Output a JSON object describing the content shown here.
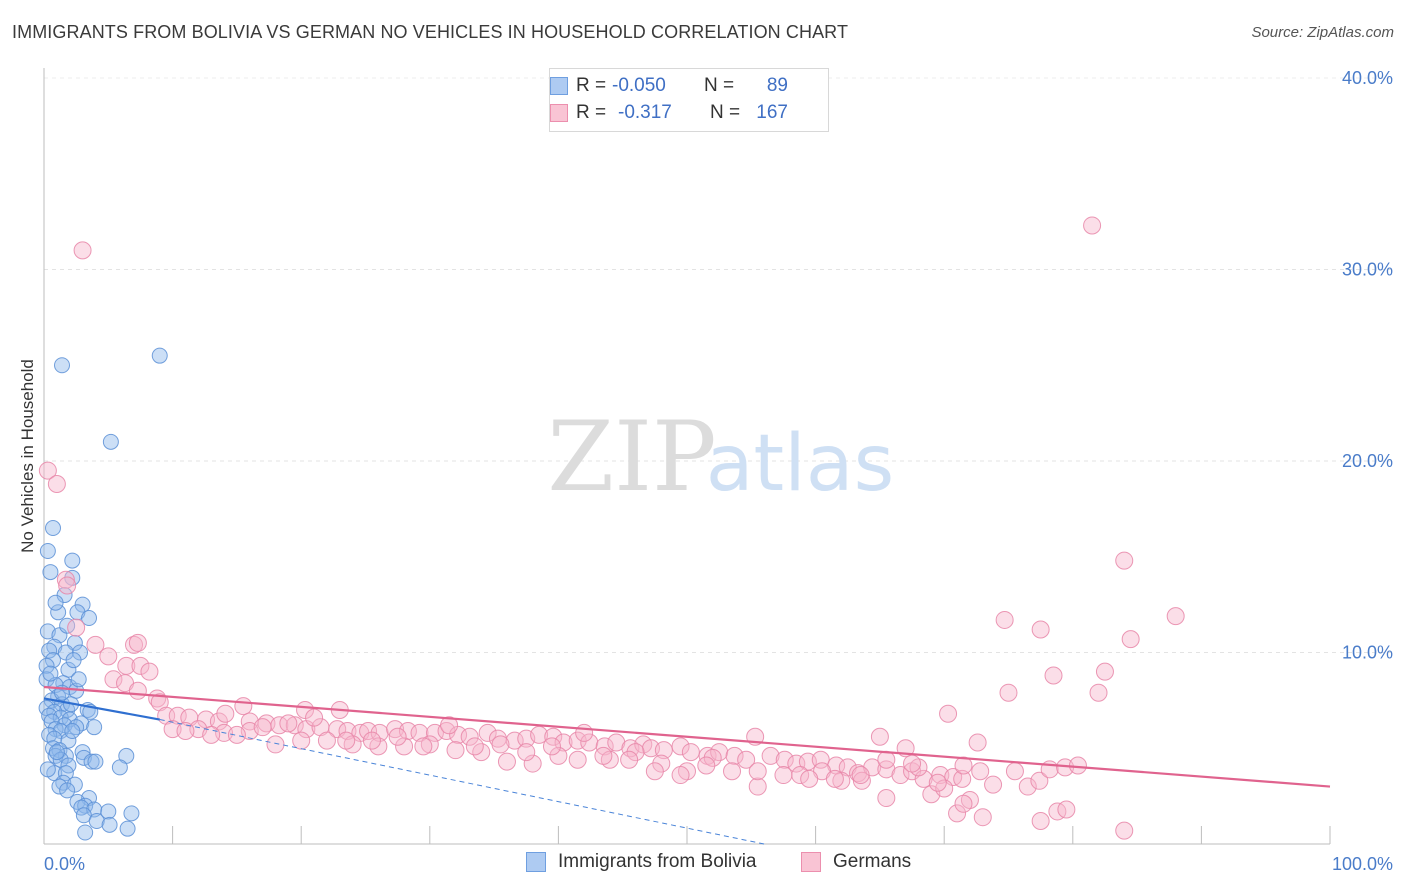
{
  "header": {
    "title": "IMMIGRANTS FROM BOLIVIA VS GERMAN NO VEHICLES IN HOUSEHOLD CORRELATION CHART",
    "source": "Source: ZipAtlas.com"
  },
  "watermark": {
    "zip": "ZIP",
    "atlas": "atlas"
  },
  "legend": {
    "rows": [
      {
        "r_label": "R =",
        "r_value": "-0.050",
        "n_label": "N =",
        "n_value": "89",
        "color": "#aecbf2",
        "border": "#6f9fe0"
      },
      {
        "r_label": "R =",
        "r_value": "-0.317",
        "n_label": "N =",
        "n_value": "167",
        "color": "#f9c4d4",
        "border": "#ec8fae"
      }
    ]
  },
  "bottom_legend": {
    "items": [
      {
        "label": "Immigrants from Bolivia",
        "color": "#aecbf2",
        "border": "#6f9fe0"
      },
      {
        "label": "Germans",
        "color": "#f9c4d4",
        "border": "#ec8fae"
      }
    ]
  },
  "chart_data": {
    "type": "scatter",
    "title": "IMMIGRANTS FROM BOLIVIA VS GERMAN NO VEHICLES IN HOUSEHOLD CORRELATION CHART",
    "xlabel": "",
    "ylabel": "No Vehicles in Household",
    "xlim": [
      0,
      100
    ],
    "ylim": [
      0,
      40
    ],
    "x_ticks": [
      "0.0%",
      "100.0%"
    ],
    "y_ticks": [
      "10.0%",
      "20.0%",
      "30.0%",
      "40.0%"
    ],
    "y_tick_values": [
      10,
      20,
      30,
      40
    ],
    "grid": true,
    "legend_position": "top-center",
    "series": [
      {
        "name": "Immigrants from Bolivia",
        "color": "#8fb7ec",
        "edge": "#5a8fd6",
        "trend": {
          "x0": 0,
          "y0": 7.6,
          "x1": 9,
          "y1": 6.5,
          "dashed_to": {
            "x": 56,
            "y": 0
          }
        },
        "points": [
          [
            1.4,
            25.0
          ],
          [
            9.0,
            25.5
          ],
          [
            5.2,
            21.0
          ],
          [
            0.7,
            16.5
          ],
          [
            0.3,
            15.3
          ],
          [
            2.2,
            14.8
          ],
          [
            0.5,
            14.2
          ],
          [
            2.2,
            13.9
          ],
          [
            1.6,
            13.0
          ],
          [
            3.0,
            12.5
          ],
          [
            1.1,
            12.1
          ],
          [
            2.6,
            12.1
          ],
          [
            3.5,
            11.8
          ],
          [
            0.3,
            11.1
          ],
          [
            1.2,
            10.9
          ],
          [
            2.4,
            10.5
          ],
          [
            0.8,
            10.3
          ],
          [
            0.4,
            10.1
          ],
          [
            1.7,
            10.0
          ],
          [
            2.8,
            10.0
          ],
          [
            0.7,
            9.6
          ],
          [
            0.2,
            9.3
          ],
          [
            1.9,
            9.1
          ],
          [
            0.2,
            8.6
          ],
          [
            1.5,
            8.4
          ],
          [
            0.9,
            8.3
          ],
          [
            2.0,
            8.2
          ],
          [
            2.5,
            8.0
          ],
          [
            1.1,
            7.7
          ],
          [
            0.6,
            7.5
          ],
          [
            1.4,
            7.3
          ],
          [
            0.2,
            7.1
          ],
          [
            1.8,
            7.0
          ],
          [
            2.1,
            7.3
          ],
          [
            0.8,
            6.9
          ],
          [
            3.4,
            7.0
          ],
          [
            0.4,
            6.7
          ],
          [
            1.3,
            6.6
          ],
          [
            2.0,
            6.5
          ],
          [
            0.6,
            6.4
          ],
          [
            2.9,
            6.3
          ],
          [
            1.6,
            6.2
          ],
          [
            2.5,
            6.1
          ],
          [
            0.9,
            6.0
          ],
          [
            1.3,
            5.9
          ],
          [
            0.4,
            5.7
          ],
          [
            0.8,
            5.5
          ],
          [
            1.9,
            5.4
          ],
          [
            0.7,
            5.0
          ],
          [
            1.2,
            4.9
          ],
          [
            3.0,
            4.8
          ],
          [
            1.7,
            4.6
          ],
          [
            0.9,
            4.6
          ],
          [
            1.3,
            4.4
          ],
          [
            3.1,
            4.5
          ],
          [
            3.7,
            4.3
          ],
          [
            4.0,
            4.3
          ],
          [
            6.4,
            4.6
          ],
          [
            5.9,
            4.0
          ],
          [
            1.9,
            4.1
          ],
          [
            0.8,
            3.7
          ],
          [
            1.7,
            3.7
          ],
          [
            1.5,
            3.2
          ],
          [
            2.4,
            3.1
          ],
          [
            1.2,
            3.0
          ],
          [
            1.8,
            2.8
          ],
          [
            3.5,
            2.4
          ],
          [
            2.6,
            2.2
          ],
          [
            3.2,
            2.0
          ],
          [
            2.9,
            1.9
          ],
          [
            3.9,
            1.8
          ],
          [
            5.0,
            1.7
          ],
          [
            6.8,
            1.6
          ],
          [
            3.1,
            1.5
          ],
          [
            4.1,
            1.2
          ],
          [
            5.1,
            1.0
          ],
          [
            6.5,
            0.8
          ],
          [
            3.2,
            0.6
          ],
          [
            0.3,
            3.9
          ],
          [
            1.0,
            4.8
          ],
          [
            2.2,
            5.9
          ],
          [
            3.6,
            6.9
          ],
          [
            0.5,
            8.9
          ],
          [
            1.4,
            7.9
          ],
          [
            2.7,
            8.6
          ],
          [
            0.9,
            12.6
          ],
          [
            1.8,
            11.4
          ],
          [
            3.9,
            6.1
          ],
          [
            2.3,
            9.6
          ]
        ]
      },
      {
        "name": "Germans",
        "color": "#f7b6cb",
        "edge": "#e886a8",
        "trend": {
          "x0": 0,
          "y0": 8.2,
          "x1": 100,
          "y1": 3.0
        },
        "points": [
          [
            3.0,
            31.0
          ],
          [
            81.5,
            32.3
          ],
          [
            0.3,
            19.5
          ],
          [
            1.0,
            18.8
          ],
          [
            84.0,
            14.8
          ],
          [
            88.0,
            11.9
          ],
          [
            1.7,
            13.8
          ],
          [
            1.8,
            13.5
          ],
          [
            74.7,
            11.7
          ],
          [
            77.5,
            11.2
          ],
          [
            84.5,
            10.7
          ],
          [
            2.5,
            11.3
          ],
          [
            4.0,
            10.4
          ],
          [
            7.0,
            10.4
          ],
          [
            7.3,
            10.5
          ],
          [
            5.0,
            9.8
          ],
          [
            6.4,
            9.3
          ],
          [
            7.5,
            9.3
          ],
          [
            8.2,
            9.0
          ],
          [
            82.5,
            9.0
          ],
          [
            78.5,
            8.8
          ],
          [
            5.4,
            8.6
          ],
          [
            6.3,
            8.4
          ],
          [
            75.0,
            7.9
          ],
          [
            82.0,
            7.9
          ],
          [
            7.3,
            8.0
          ],
          [
            8.8,
            7.6
          ],
          [
            9.0,
            7.4
          ],
          [
            15.5,
            7.2
          ],
          [
            20.3,
            7.0
          ],
          [
            23.0,
            7.0
          ],
          [
            9.5,
            6.7
          ],
          [
            10.4,
            6.7
          ],
          [
            11.3,
            6.6
          ],
          [
            12.6,
            6.5
          ],
          [
            13.6,
            6.4
          ],
          [
            14.1,
            6.8
          ],
          [
            16.0,
            6.4
          ],
          [
            17.3,
            6.3
          ],
          [
            18.3,
            6.2
          ],
          [
            19.5,
            6.2
          ],
          [
            20.4,
            6.0
          ],
          [
            21.5,
            6.1
          ],
          [
            22.8,
            6.0
          ],
          [
            23.6,
            5.9
          ],
          [
            24.6,
            5.8
          ],
          [
            25.2,
            5.9
          ],
          [
            26.1,
            5.8
          ],
          [
            27.3,
            6.0
          ],
          [
            28.3,
            5.9
          ],
          [
            29.2,
            5.8
          ],
          [
            30.4,
            5.8
          ],
          [
            31.3,
            5.9
          ],
          [
            32.2,
            5.7
          ],
          [
            33.1,
            5.6
          ],
          [
            34.5,
            5.8
          ],
          [
            35.3,
            5.5
          ],
          [
            36.6,
            5.4
          ],
          [
            37.5,
            5.5
          ],
          [
            38.5,
            5.7
          ],
          [
            39.6,
            5.6
          ],
          [
            40.4,
            5.3
          ],
          [
            41.5,
            5.4
          ],
          [
            42.4,
            5.3
          ],
          [
            43.6,
            5.1
          ],
          [
            44.5,
            5.3
          ],
          [
            45.6,
            5.0
          ],
          [
            46.6,
            5.2
          ],
          [
            47.2,
            5.0
          ],
          [
            48.2,
            4.9
          ],
          [
            49.5,
            5.1
          ],
          [
            50.3,
            4.8
          ],
          [
            51.6,
            4.6
          ],
          [
            52.5,
            4.8
          ],
          [
            53.7,
            4.6
          ],
          [
            54.6,
            4.4
          ],
          [
            55.3,
            5.6
          ],
          [
            56.5,
            4.6
          ],
          [
            57.6,
            4.4
          ],
          [
            58.5,
            4.2
          ],
          [
            59.4,
            4.3
          ],
          [
            60.4,
            4.4
          ],
          [
            61.6,
            4.1
          ],
          [
            62.5,
            4.0
          ],
          [
            63.3,
            3.7
          ],
          [
            64.4,
            4.0
          ],
          [
            65.5,
            3.9
          ],
          [
            66.6,
            3.6
          ],
          [
            67.5,
            3.8
          ],
          [
            68.4,
            3.4
          ],
          [
            69.7,
            3.6
          ],
          [
            70.7,
            3.5
          ],
          [
            71.4,
            3.4
          ],
          [
            72.6,
            5.3
          ],
          [
            73.8,
            3.1
          ],
          [
            75.5,
            3.8
          ],
          [
            76.5,
            3.0
          ],
          [
            77.4,
            3.3
          ],
          [
            78.2,
            3.9
          ],
          [
            79.4,
            4.0
          ],
          [
            80.4,
            4.1
          ],
          [
            65.0,
            5.6
          ],
          [
            67.0,
            5.0
          ],
          [
            70.3,
            6.8
          ],
          [
            71.5,
            4.1
          ],
          [
            72.8,
            3.8
          ],
          [
            55.5,
            3.0
          ],
          [
            58.8,
            3.6
          ],
          [
            60.5,
            3.8
          ],
          [
            62.0,
            3.3
          ],
          [
            63.6,
            3.3
          ],
          [
            65.5,
            2.4
          ],
          [
            68.0,
            4.0
          ],
          [
            69.0,
            2.6
          ],
          [
            70.0,
            2.9
          ],
          [
            71.0,
            1.6
          ],
          [
            72.0,
            2.3
          ],
          [
            73.0,
            1.4
          ],
          [
            77.5,
            1.2
          ],
          [
            78.8,
            1.7
          ],
          [
            79.5,
            1.8
          ],
          [
            84.0,
            0.7
          ],
          [
            52.0,
            4.5
          ],
          [
            50.0,
            3.8
          ],
          [
            48.0,
            4.2
          ],
          [
            46.0,
            4.8
          ],
          [
            44.0,
            4.4
          ],
          [
            42.0,
            5.8
          ],
          [
            40.0,
            4.6
          ],
          [
            38.0,
            4.2
          ],
          [
            36.0,
            4.3
          ],
          [
            34.0,
            4.8
          ],
          [
            32.0,
            4.9
          ],
          [
            30.0,
            5.2
          ],
          [
            28.0,
            5.1
          ],
          [
            26.0,
            5.1
          ],
          [
            24.0,
            5.2
          ],
          [
            22.0,
            5.4
          ],
          [
            20.0,
            5.4
          ],
          [
            18.0,
            5.2
          ],
          [
            16.0,
            5.9
          ],
          [
            14.0,
            5.8
          ],
          [
            12.0,
            6.0
          ],
          [
            10.0,
            6.0
          ],
          [
            11.0,
            5.9
          ],
          [
            13.0,
            5.7
          ],
          [
            15.0,
            5.7
          ],
          [
            17.0,
            6.1
          ],
          [
            19.0,
            6.3
          ],
          [
            21.0,
            6.6
          ],
          [
            23.5,
            5.4
          ],
          [
            25.5,
            5.4
          ],
          [
            27.5,
            5.6
          ],
          [
            29.5,
            5.1
          ],
          [
            31.5,
            6.2
          ],
          [
            33.5,
            5.1
          ],
          [
            35.5,
            5.2
          ],
          [
            37.5,
            4.8
          ],
          [
            39.5,
            5.1
          ],
          [
            41.5,
            4.4
          ],
          [
            43.5,
            4.6
          ],
          [
            45.5,
            4.4
          ],
          [
            47.5,
            3.8
          ],
          [
            49.5,
            3.6
          ],
          [
            51.5,
            4.1
          ],
          [
            53.5,
            3.8
          ],
          [
            55.5,
            3.8
          ],
          [
            57.5,
            3.6
          ],
          [
            59.5,
            3.4
          ],
          [
            61.5,
            3.4
          ],
          [
            63.5,
            3.6
          ],
          [
            65.5,
            4.4
          ],
          [
            67.5,
            4.2
          ],
          [
            69.5,
            3.2
          ],
          [
            71.5,
            2.1
          ]
        ]
      }
    ]
  }
}
